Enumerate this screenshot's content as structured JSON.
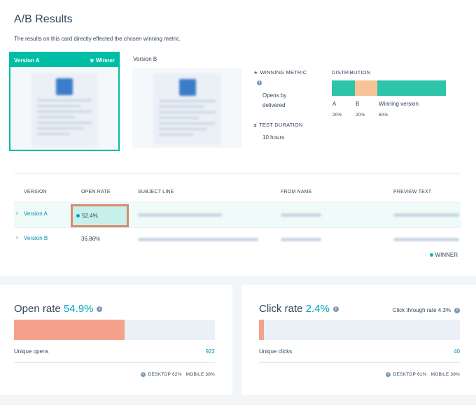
{
  "header": {
    "title": "A/B Results",
    "description": "The results on this card directly effected the chosen winning metric."
  },
  "versions": {
    "a_label": "Version A",
    "winner_label": "Winner",
    "b_label": "Version B"
  },
  "meta": {
    "winning_metric_label": "WINNING METRIC",
    "winning_metric_value_1": "Opens by",
    "winning_metric_value_2": "delivered",
    "test_duration_label": "TEST DURATION",
    "test_duration_value": "10 hours",
    "distribution_label": "DISTRIBUTION"
  },
  "distribution": {
    "segments": [
      {
        "label": "A",
        "pct": "20%",
        "value": 20,
        "color": "#2ec4a9"
      },
      {
        "label": "B",
        "pct": "20%",
        "value": 20,
        "color": "#f8c497"
      },
      {
        "label": "Winning version",
        "pct": "60%",
        "value": 60,
        "color": "#2ec4a9"
      }
    ]
  },
  "table": {
    "headers": [
      "VERSION",
      "OPEN RATE",
      "SUBJECT LINE",
      "FROM NAME",
      "PREVIEW TEXT"
    ],
    "rows": [
      {
        "version": "Version A",
        "open_rate": "52.4%"
      },
      {
        "version": "Version B",
        "open_rate": "36.86%"
      }
    ],
    "legend": "WINNER"
  },
  "open_rate": {
    "title": "Open rate",
    "pct": "54.9%",
    "value": 54.9,
    "sub_label": "Unique opens",
    "count": "922",
    "desktop": "DESKTOP 62%",
    "mobile": "MOBILE 38%"
  },
  "click_rate": {
    "title": "Click rate",
    "pct": "2.4%",
    "value": 2.4,
    "ctr_label": "Click through rate 4.3%",
    "sub_label": "Unique clicks",
    "count": "40",
    "desktop": "DESKTOP 61%",
    "mobile": "MOBILE 39%"
  },
  "colors": {
    "teal": "#00bda5",
    "link": "#0091ae",
    "bar_fill": "#f5a28c",
    "highlight_border": "#d98a6a"
  }
}
